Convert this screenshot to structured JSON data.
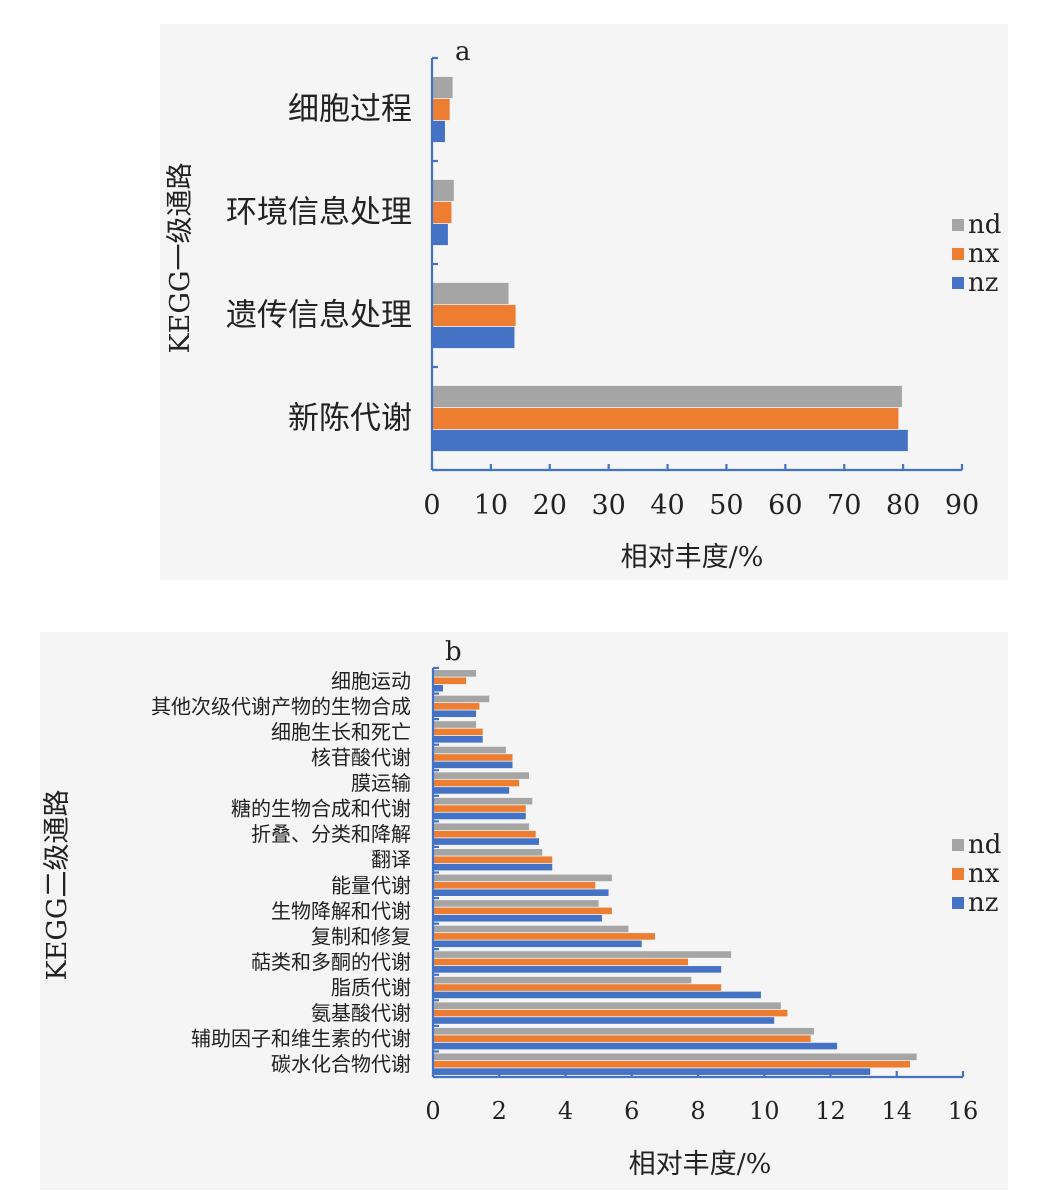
{
  "colors": {
    "nd": "#a5a5a5",
    "nx": "#ed7d31",
    "nz": "#4472c4"
  },
  "chart_data": [
    {
      "type": "bar",
      "orientation": "horizontal",
      "panel": "a",
      "categories": [
        "新陈代谢",
        "遗传信息处理",
        "环境信息处理",
        "细胞过程"
      ],
      "series": [
        {
          "name": "nd",
          "values": [
            79.8,
            13.0,
            3.7,
            3.5
          ]
        },
        {
          "name": "nx",
          "values": [
            79.2,
            14.2,
            3.3,
            3.0
          ]
        },
        {
          "name": "nz",
          "values": [
            80.8,
            14.0,
            2.7,
            2.2
          ]
        }
      ],
      "xticks": [
        "0",
        "10",
        "20",
        "30",
        "40",
        "50",
        "60",
        "70",
        "80",
        "90"
      ],
      "xlim": [
        0,
        90
      ],
      "xlabel": "相对丰度/%",
      "ylabel": "KEGG一级通路",
      "legend": [
        "nd",
        "nx",
        "nz"
      ],
      "legend_position": "right"
    },
    {
      "type": "bar",
      "orientation": "horizontal",
      "panel": "b",
      "categories": [
        "碳水化合物代谢",
        "辅助因子和维生素的代谢",
        "氨基酸代谢",
        "脂质代谢",
        "萜类和多酮的代谢",
        "复制和修复",
        "生物降解和代谢",
        "能量代谢",
        "翻译",
        "折叠、分类和降解",
        "糖的生物合成和代谢",
        "膜运输",
        "核苷酸代谢",
        "细胞生长和死亡",
        "其他次级代谢产物的生物合成",
        "细胞运动"
      ],
      "series": [
        {
          "name": "nd",
          "values": [
            14.6,
            11.5,
            10.5,
            7.8,
            9.0,
            5.9,
            5.0,
            5.4,
            3.3,
            2.9,
            3.0,
            2.9,
            2.2,
            1.3,
            1.7,
            1.3
          ]
        },
        {
          "name": "nx",
          "values": [
            14.4,
            11.4,
            10.7,
            8.7,
            7.7,
            6.7,
            5.4,
            4.9,
            3.6,
            3.1,
            2.8,
            2.6,
            2.4,
            1.5,
            1.4,
            1.0
          ]
        },
        {
          "name": "nz",
          "values": [
            13.2,
            12.2,
            10.3,
            9.9,
            8.7,
            6.3,
            5.1,
            5.3,
            3.6,
            3.2,
            2.8,
            2.3,
            2.4,
            1.5,
            1.3,
            0.3
          ]
        }
      ],
      "xticks": [
        "0",
        "2",
        "4",
        "6",
        "8",
        "10",
        "12",
        "14",
        "16"
      ],
      "xlim": [
        0,
        16
      ],
      "xlabel": "相对丰度/%",
      "ylabel": "KEGG二级通路",
      "legend": [
        "nd",
        "nx",
        "nz"
      ],
      "legend_position": "right"
    }
  ]
}
